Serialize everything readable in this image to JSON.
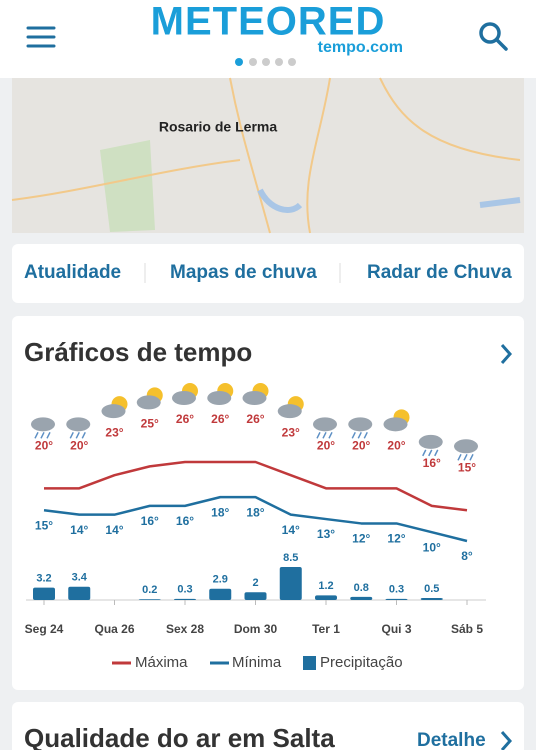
{
  "header": {
    "logo": "METEORED",
    "sublogo": "tempo.com"
  },
  "map": {
    "label": "Rosario de Lerma"
  },
  "tabs": [
    "Atualidade",
    "Mapas de chuva",
    "Radar de Chuva"
  ],
  "graphs_card": {
    "title": "Gráficos de tempo"
  },
  "chart_data": {
    "type": "line",
    "legend": "bottom",
    "categories": [
      "Seg 24",
      null,
      "Qua 26",
      null,
      "Sex 28",
      null,
      "Dom 30",
      null,
      "Ter 1",
      null,
      "Qui 3",
      null,
      "Sáb 5"
    ],
    "series": [
      {
        "name": "Máxima",
        "color": "#c0393b",
        "values": [
          20,
          20,
          23,
          25,
          26,
          26,
          26,
          23,
          20,
          20,
          20,
          16,
          15
        ],
        "value_labels": [
          "20°",
          "20°",
          "23°",
          "25°",
          "26°",
          "26°",
          "26°",
          "23°",
          "20°",
          "20°",
          "20°",
          "16°",
          "15°"
        ]
      },
      {
        "name": "Mínima",
        "color": "#1f6f9f",
        "values": [
          15,
          14,
          14,
          16,
          16,
          18,
          18,
          14,
          13,
          12,
          12,
          10,
          8
        ],
        "value_labels": [
          "15°",
          "14°",
          "14°",
          "16°",
          "16°",
          "18°",
          "18°",
          "14°",
          "13°",
          "12°",
          "12°",
          "10°",
          "8°"
        ]
      },
      {
        "name": "Precipitação",
        "type": "bar",
        "color": "#1f6f9f",
        "values": [
          3.2,
          3.4,
          null,
          0.2,
          0.3,
          2.9,
          2,
          8.5,
          1.2,
          0.8,
          0.3,
          0.5,
          null
        ]
      }
    ]
  },
  "air_card": {
    "title": "Qualidade do ar em Salta",
    "link": "Detalhe"
  }
}
